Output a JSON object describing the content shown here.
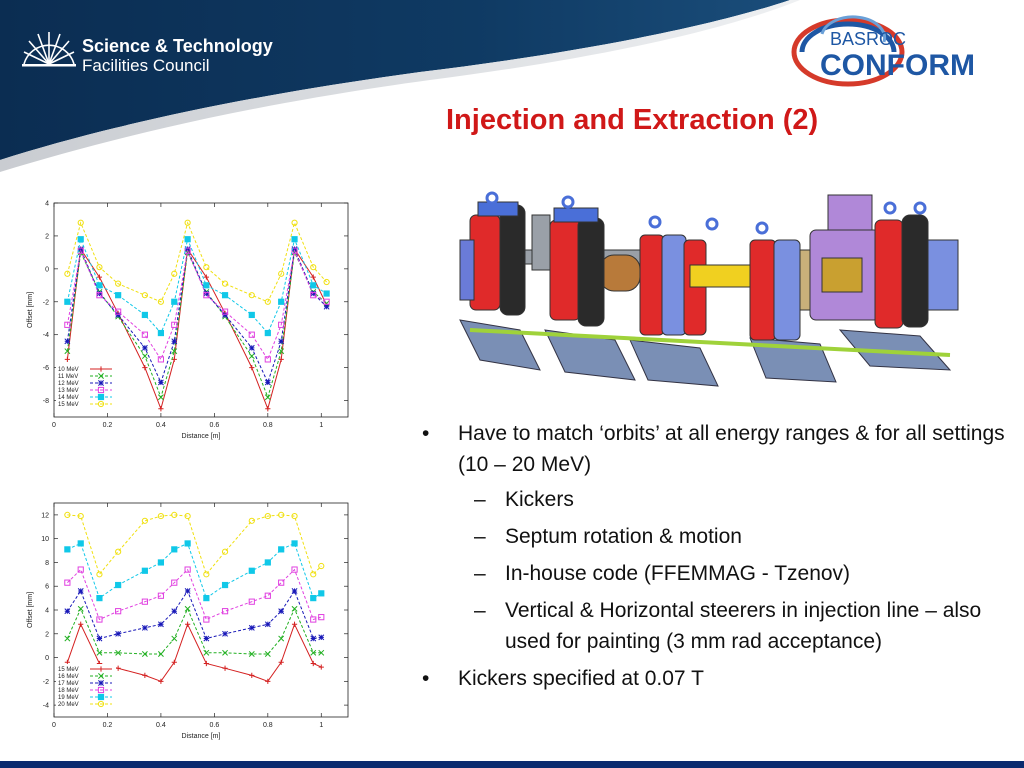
{
  "org": {
    "line1": "Science & Technology",
    "line2": "Facilities Council"
  },
  "partner": {
    "top": "BASROC",
    "main": "CONFORM"
  },
  "title": "Injection and Extraction (2)",
  "colors": {
    "header_dark": "#0d3157",
    "title_red": "#d01818",
    "footer": "#0a2a6e"
  },
  "bullets": [
    {
      "level": 1,
      "marker": "•",
      "text": "Have to match ‘orbits’ at all energy ranges & for all settings (10 – 20 MeV)"
    },
    {
      "level": 2,
      "marker": "–",
      "text": "Kickers"
    },
    {
      "level": 2,
      "marker": "–",
      "text": "Septum rotation & motion"
    },
    {
      "level": 2,
      "marker": "–",
      "text": "In-house code (FFEMMAG - Tzenov)"
    },
    {
      "level": 2,
      "marker": "–",
      "text": "Vertical & Horizontal steerers in injection line – also used for painting (3 mm rad acceptance)"
    },
    {
      "level": 1,
      "marker": "•",
      "text": "Kickers specified at 0.07 T"
    }
  ],
  "chart_data": [
    {
      "type": "line",
      "xlabel": "Distance [m]",
      "ylabel": "Offset [mm]",
      "xlim": [
        0,
        1.1
      ],
      "ylim": [
        -9,
        4
      ],
      "xticks": [
        0,
        0.2,
        0.4,
        0.6,
        0.8,
        1
      ],
      "xtick_labels": [
        "0",
        "0.2",
        "0.4",
        "0.6",
        "0.8",
        "1"
      ],
      "yticks": [
        -8,
        -6,
        -4,
        -2,
        0,
        2,
        4
      ],
      "legend": "bottom-left",
      "grid": false,
      "x": [
        0.05,
        0.1,
        0.17,
        0.24,
        0.34,
        0.4,
        0.45,
        0.5,
        0.57,
        0.64,
        0.74,
        0.8,
        0.85,
        0.9,
        0.97,
        1.02
      ],
      "series": [
        {
          "name": "10 MeV",
          "color": "#d42020",
          "marker": "plus",
          "values": [
            -5.5,
            1.2,
            -0.5,
            -2.7,
            -6.0,
            -8.5,
            -5.5,
            1.2,
            -0.5,
            -2.7,
            -6.0,
            -8.5,
            -5.5,
            1.2,
            -0.5,
            -2.2
          ]
        },
        {
          "name": "11 MeV",
          "color": "#22b022",
          "marker": "x",
          "values": [
            -5.0,
            1.0,
            -1.4,
            -2.9,
            -5.3,
            -7.8,
            -5.0,
            1.0,
            -1.4,
            -2.9,
            -5.3,
            -7.8,
            -5.0,
            1.0,
            -1.4,
            -2.1
          ]
        },
        {
          "name": "12 MeV",
          "color": "#1818b8",
          "marker": "star",
          "values": [
            -4.4,
            1.2,
            -1.5,
            -2.8,
            -4.8,
            -6.9,
            -4.4,
            1.2,
            -1.5,
            -2.8,
            -4.8,
            -6.9,
            -4.4,
            1.2,
            -1.5,
            -2.3
          ]
        },
        {
          "name": "13 MeV",
          "color": "#e040e0",
          "marker": "square",
          "values": [
            -3.4,
            1.1,
            -1.6,
            -2.6,
            -4.0,
            -5.5,
            -3.4,
            1.1,
            -1.6,
            -2.6,
            -4.0,
            -5.5,
            -3.4,
            1.1,
            -1.6,
            -2.0
          ]
        },
        {
          "name": "14 MeV",
          "color": "#10c8e8",
          "marker": "square-filled",
          "values": [
            -2.0,
            1.8,
            -1.0,
            -1.6,
            -2.8,
            -3.9,
            -2.0,
            1.8,
            -1.0,
            -1.6,
            -2.8,
            -3.9,
            -2.0,
            1.8,
            -1.0,
            -1.5
          ]
        },
        {
          "name": "15 MeV",
          "color": "#f0e010",
          "marker": "circle",
          "values": [
            -0.3,
            2.8,
            0.1,
            -0.9,
            -1.6,
            -2.0,
            -0.3,
            2.8,
            0.1,
            -0.9,
            -1.6,
            -2.0,
            -0.3,
            2.8,
            0.1,
            -0.8
          ]
        }
      ]
    },
    {
      "type": "line",
      "xlabel": "Distance [m]",
      "ylabel": "Offset [mm]",
      "xlim": [
        0,
        1.1
      ],
      "ylim": [
        -5,
        13
      ],
      "xticks": [
        0,
        0.2,
        0.4,
        0.6,
        0.8,
        1
      ],
      "xtick_labels": [
        "0",
        "0.2",
        "0.4",
        "0.6",
        "0.8",
        "1"
      ],
      "yticks": [
        -4,
        -2,
        0,
        2,
        4,
        6,
        8,
        10,
        12
      ],
      "legend": "bottom-left",
      "grid": false,
      "x": [
        0.05,
        0.1,
        0.17,
        0.24,
        0.34,
        0.4,
        0.45,
        0.5,
        0.57,
        0.64,
        0.74,
        0.8,
        0.85,
        0.9,
        0.97,
        1.0
      ],
      "series": [
        {
          "name": "15 MeV",
          "color": "#d42020",
          "marker": "plus",
          "values": [
            -0.4,
            2.8,
            -0.5,
            -0.9,
            -1.5,
            -2.0,
            -0.4,
            2.8,
            -0.5,
            -0.9,
            -1.5,
            -2.0,
            -0.4,
            2.8,
            -0.5,
            -0.8
          ]
        },
        {
          "name": "16 MeV",
          "color": "#22b022",
          "marker": "x",
          "values": [
            1.6,
            4.1,
            0.4,
            0.4,
            0.3,
            0.3,
            1.6,
            4.1,
            0.4,
            0.4,
            0.3,
            0.3,
            1.6,
            4.1,
            0.4,
            0.4
          ]
        },
        {
          "name": "17 MeV",
          "color": "#1818b8",
          "marker": "star",
          "values": [
            3.9,
            5.6,
            1.6,
            2.0,
            2.5,
            2.8,
            3.9,
            5.6,
            1.6,
            2.0,
            2.5,
            2.8,
            3.9,
            5.6,
            1.6,
            1.7
          ]
        },
        {
          "name": "18 MeV",
          "color": "#e040e0",
          "marker": "square",
          "values": [
            6.3,
            7.4,
            3.2,
            3.9,
            4.7,
            5.2,
            6.3,
            7.4,
            3.2,
            3.9,
            4.7,
            5.2,
            6.3,
            7.4,
            3.2,
            3.4
          ]
        },
        {
          "name": "19 MeV",
          "color": "#10c8e8",
          "marker": "square-filled",
          "values": [
            9.1,
            9.6,
            5.0,
            6.1,
            7.3,
            8.0,
            9.1,
            9.6,
            5.0,
            6.1,
            7.3,
            8.0,
            9.1,
            9.6,
            5.0,
            5.4
          ]
        },
        {
          "name": "20 MeV",
          "color": "#f0e010",
          "marker": "circle",
          "values": [
            12.0,
            11.9,
            7.0,
            8.9,
            11.5,
            11.9,
            12.0,
            11.9,
            7.0,
            8.9,
            11.5,
            11.9,
            12.0,
            11.9,
            7.0,
            7.7
          ]
        }
      ]
    }
  ]
}
